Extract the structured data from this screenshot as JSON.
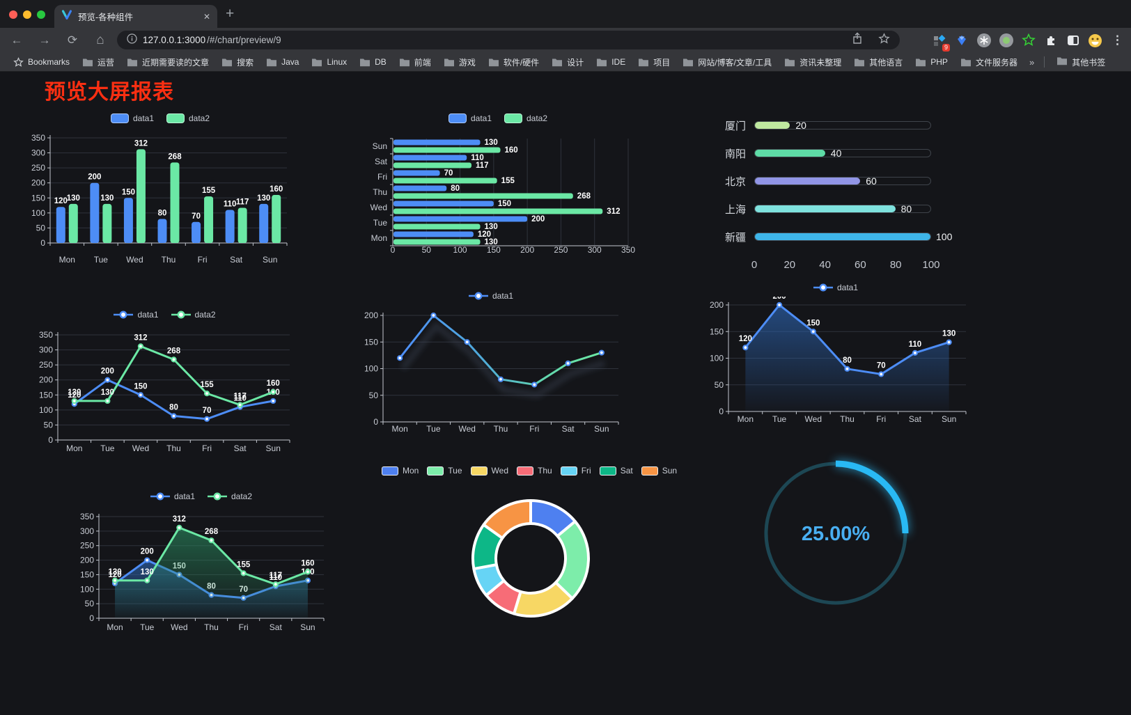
{
  "browser": {
    "tab": {
      "title": "预览-各种组件",
      "close_glyph": "✕"
    },
    "new_tab_glyph": "+",
    "nav": {
      "back_glyph": "←",
      "forward_glyph": "→",
      "reload_glyph": "⟳",
      "home_glyph": "⌂"
    },
    "url_host": "127.0.0.1:3000",
    "url_path": "/#/chart/preview/9",
    "extensions": {
      "badge": "9"
    },
    "menu_glyph": "⋮",
    "bookmarks_bar": {
      "first_label": "Bookmarks",
      "folders": [
        "运营",
        "近期需要读的文章",
        "搜索",
        "Java",
        "Linux",
        "DB",
        "前端",
        "游戏",
        "软件/硬件",
        "设计",
        "IDE",
        "项目",
        "网站/博客/文章/工具",
        "资讯未整理",
        "其他语言",
        "PHP",
        "文件服务器"
      ],
      "overflow": "»",
      "other": "其他书签"
    }
  },
  "page": {
    "title": "预览大屏报表"
  },
  "chart_data": [
    {
      "id": "grouped-bar-chart",
      "type": "bar",
      "categories": [
        "Mon",
        "Tue",
        "Wed",
        "Thu",
        "Fri",
        "Sat",
        "Sun"
      ],
      "series": [
        {
          "name": "data1",
          "color": "#4d8df6",
          "values": [
            120,
            200,
            150,
            80,
            70,
            110,
            130
          ]
        },
        {
          "name": "data2",
          "color": "#6be8a5",
          "values": [
            130,
            130,
            312,
            268,
            155,
            117,
            160
          ]
        }
      ],
      "ylim": [
        0,
        350
      ],
      "ytick_step": 50,
      "legend_position": "top",
      "show_labels": true
    },
    {
      "id": "horizontal-bar-chart",
      "type": "hbar",
      "categories": [
        "Mon",
        "Tue",
        "Wed",
        "Thu",
        "Fri",
        "Sat",
        "Sun"
      ],
      "row_order_top_to_bottom": [
        "Sun",
        "Sat",
        "Fri",
        "Thu",
        "Wed",
        "Tue",
        "Mon"
      ],
      "series": [
        {
          "name": "data1",
          "color": "#4d8df6",
          "values": [
            120,
            200,
            150,
            80,
            70,
            110,
            130
          ]
        },
        {
          "name": "data2",
          "color": "#6be8a5",
          "values": [
            130,
            130,
            312,
            268,
            155,
            117,
            160
          ]
        }
      ],
      "xlim": [
        0,
        350
      ],
      "xtick_step": 50,
      "legend_position": "top",
      "show_labels": true
    },
    {
      "id": "progress-bar-chart",
      "type": "progress",
      "items": [
        {
          "label": "厦门",
          "value": 20,
          "color": "#bfe8a0"
        },
        {
          "label": "南阳",
          "value": 40,
          "color": "#5edba6"
        },
        {
          "label": "北京",
          "value": 60,
          "color": "#9195e6"
        },
        {
          "label": "上海",
          "value": 80,
          "color": "#7fe2de"
        },
        {
          "label": "新疆",
          "value": 100,
          "color": "#3eb5e9"
        }
      ],
      "xlim": [
        0,
        100
      ],
      "xticks": [
        0,
        20,
        40,
        60,
        80,
        100
      ]
    },
    {
      "id": "dual-line-chart",
      "type": "line",
      "categories": [
        "Mon",
        "Tue",
        "Wed",
        "Thu",
        "Fri",
        "Sat",
        "Sun"
      ],
      "series": [
        {
          "name": "data1",
          "color": "#4d8df6",
          "values": [
            120,
            200,
            150,
            80,
            70,
            110,
            130
          ]
        },
        {
          "name": "data2",
          "color": "#6be8a5",
          "values": [
            130,
            130,
            312,
            268,
            155,
            117,
            160
          ]
        }
      ],
      "ylim": [
        0,
        350
      ],
      "ytick_step": 50,
      "legend_position": "top",
      "show_labels": true
    },
    {
      "id": "gradient-line-chart",
      "type": "line",
      "categories": [
        "Mon",
        "Tue",
        "Wed",
        "Thu",
        "Fri",
        "Sat",
        "Sun"
      ],
      "series": [
        {
          "name": "data1",
          "color": "#4d8df6",
          "gradient": [
            "#4e8ef7",
            "#4fa9d9",
            "#62d7ae",
            "#6ce8a4"
          ],
          "values": [
            120,
            200,
            150,
            80,
            70,
            110,
            130
          ]
        }
      ],
      "ylim": [
        0,
        200
      ],
      "ytick_step": 50,
      "legend_position": "top",
      "show_labels": false,
      "shadow": true
    },
    {
      "id": "area-line-chart",
      "type": "area",
      "categories": [
        "Mon",
        "Tue",
        "Wed",
        "Thu",
        "Fri",
        "Sat",
        "Sun"
      ],
      "series": [
        {
          "name": "data1",
          "color": "#4d8df6",
          "fill_color": "#2e6abc",
          "values": [
            120,
            200,
            150,
            80,
            70,
            110,
            130
          ]
        }
      ],
      "ylim": [
        0,
        200
      ],
      "ytick_step": 50,
      "legend_position": "top",
      "show_labels": true
    },
    {
      "id": "dual-area-chart",
      "type": "area",
      "categories": [
        "Mon",
        "Tue",
        "Wed",
        "Thu",
        "Fri",
        "Sat",
        "Sun"
      ],
      "series": [
        {
          "name": "data1",
          "color": "#4d8df6",
          "fill_color": "#2e6abc",
          "values": [
            120,
            200,
            150,
            80,
            70,
            110,
            130
          ]
        },
        {
          "name": "data2",
          "color": "#6be8a5",
          "fill_color": "#2a8c60",
          "values": [
            130,
            130,
            312,
            268,
            155,
            117,
            160
          ]
        }
      ],
      "ylim": [
        0,
        350
      ],
      "ytick_step": 50,
      "legend_position": "top",
      "show_labels": true
    },
    {
      "id": "donut-chart",
      "type": "donut",
      "categories": [
        "Mon",
        "Tue",
        "Wed",
        "Thu",
        "Fri",
        "Sat",
        "Sun"
      ],
      "values": [
        120,
        200,
        150,
        80,
        70,
        110,
        130
      ],
      "colors": [
        "#4e80f0",
        "#7dedaa",
        "#f7d764",
        "#f76c77",
        "#66d4f5",
        "#0db787",
        "#f79444"
      ],
      "border_color": "#ffffff",
      "legend_position": "top"
    },
    {
      "id": "ring-progress",
      "type": "ring",
      "value": 25,
      "label": "25.00%",
      "color": "#29b9f4",
      "track_color": "#1d4754",
      "text_color": "#49aff2"
    }
  ]
}
